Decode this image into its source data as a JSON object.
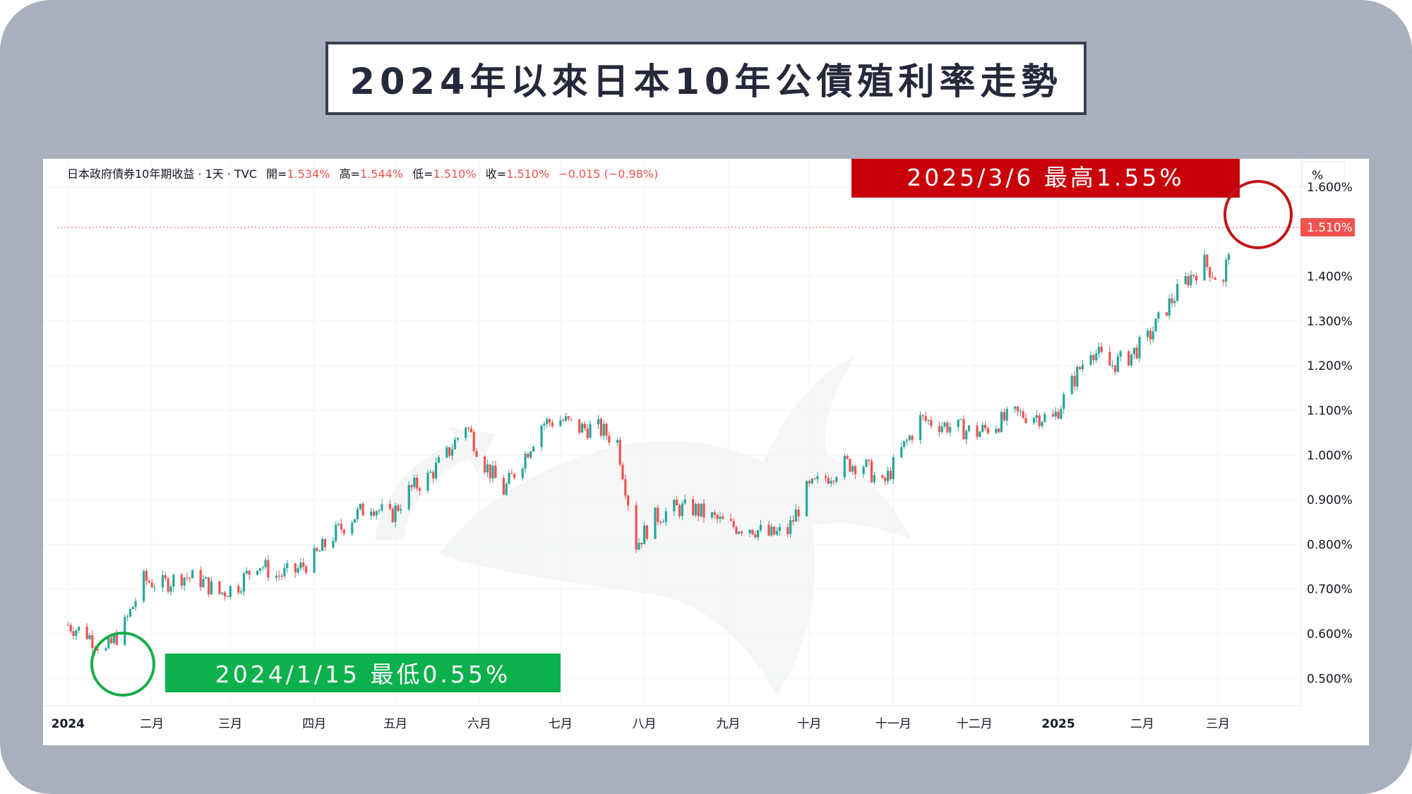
{
  "title": "2024年以來日本10年公債殖利率走勢",
  "legend_info": {
    "symbol": "日本政府債券10年期收益 · 1天 · TVC",
    "open_label": "開=",
    "open_value": "1.534%",
    "high_label": "高=",
    "high_value": "1.544%",
    "low_label": "低=",
    "low_value": "1.510%",
    "close_label": "收=",
    "close_value": "1.510%",
    "change": "−0.015 (−0.98%)"
  },
  "unit_label": "%",
  "price_tag": "1.510%",
  "annotations": {
    "high": "2025/3/6  最高1.55%",
    "low": "2024/1/15  最低0.55%"
  },
  "colors": {
    "up": "#26a69a",
    "down": "#ef5350",
    "high_box": "#c8000a",
    "low_box": "#0bb14c",
    "high_circle": "#c11519",
    "low_circle": "#17ad4a"
  },
  "chart_data": {
    "type": "line",
    "style": "candlestick",
    "y_unit": "%",
    "ylim": [
      0.45,
      1.6
    ],
    "y_ticks": [
      "1.600%",
      "1.400%",
      "1.300%",
      "1.200%",
      "1.100%",
      "1.000%",
      "0.900%",
      "0.800%",
      "0.700%",
      "0.600%",
      "0.500%"
    ],
    "x_ticks": [
      "2024",
      "二月",
      "三月",
      "四月",
      "五月",
      "六月",
      "七月",
      "八月",
      "九月",
      "十月",
      "十一月",
      "十二月",
      "2025",
      "二月",
      "三月"
    ],
    "x_ticks_bold": [
      "2024",
      "2025"
    ],
    "grid": true,
    "last_value": 1.51,
    "annotated_points": [
      {
        "date": "2025-03-06",
        "value": 1.55,
        "label": "最高"
      },
      {
        "date": "2024-01-15",
        "value": 0.55,
        "label": "最低"
      }
    ],
    "series": [
      {
        "x": [
          "2024-01-01",
          "2024-01-08",
          "2024-01-15",
          "2024-01-22",
          "2024-01-29",
          "2024-02-05",
          "2024-02-12",
          "2024-02-19",
          "2024-02-26",
          "2024-03-04",
          "2024-03-11",
          "2024-03-18",
          "2024-03-25",
          "2024-04-01",
          "2024-04-08",
          "2024-04-15",
          "2024-04-22",
          "2024-04-29",
          "2024-05-06",
          "2024-05-13",
          "2024-05-20",
          "2024-05-27",
          "2024-06-03",
          "2024-06-10",
          "2024-06-17",
          "2024-06-24",
          "2024-07-01",
          "2024-07-08",
          "2024-07-15",
          "2024-07-22",
          "2024-07-29",
          "2024-08-05",
          "2024-08-12",
          "2024-08-19",
          "2024-08-26",
          "2024-09-02",
          "2024-09-09",
          "2024-09-16",
          "2024-09-23",
          "2024-09-30",
          "2024-10-07",
          "2024-10-14",
          "2024-10-21",
          "2024-10-28",
          "2024-11-04",
          "2024-11-11",
          "2024-11-18",
          "2024-11-25",
          "2024-12-02",
          "2024-12-09",
          "2024-12-16",
          "2024-12-23",
          "2024-12-30",
          "2025-01-06",
          "2025-01-13",
          "2025-01-20",
          "2025-01-27",
          "2025-02-03",
          "2025-02-10",
          "2025-02-17",
          "2025-02-24",
          "2025-03-03",
          "2025-03-06"
        ],
        "values": [
          0.62,
          0.6,
          0.56,
          0.62,
          0.72,
          0.71,
          0.73,
          0.72,
          0.69,
          0.71,
          0.76,
          0.73,
          0.74,
          0.77,
          0.82,
          0.86,
          0.89,
          0.86,
          0.92,
          0.95,
          1.0,
          1.07,
          0.98,
          0.92,
          0.99,
          1.07,
          1.08,
          1.06,
          1.06,
          1.03,
          0.8,
          0.86,
          0.88,
          0.88,
          0.86,
          0.84,
          0.84,
          0.82,
          0.83,
          0.92,
          0.95,
          0.98,
          0.98,
          0.93,
          1.01,
          1.08,
          1.07,
          1.06,
          1.05,
          1.07,
          1.09,
          1.09,
          1.08,
          1.16,
          1.24,
          1.2,
          1.22,
          1.26,
          1.33,
          1.39,
          1.43,
          1.38,
          1.51
        ]
      }
    ]
  }
}
